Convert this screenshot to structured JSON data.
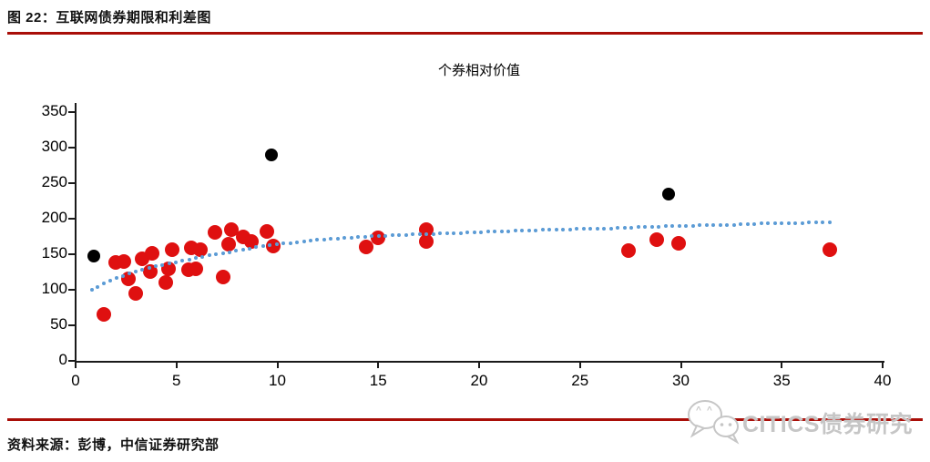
{
  "figure": {
    "title": "图 22：互联网债券期限和利差图",
    "source": "资料来源：彭博，中信证券研究部",
    "watermark_text": "CITICS债券研究",
    "accent_color": "#A90E08"
  },
  "chart_data": {
    "type": "scatter",
    "title": "个券相对价值",
    "xlabel": "",
    "ylabel": "",
    "xlim": [
      0,
      40
    ],
    "ylim": [
      0,
      350
    ],
    "x_ticks": [
      0,
      5,
      10,
      15,
      20,
      25,
      30,
      35,
      40
    ],
    "y_ticks": [
      0,
      50,
      100,
      150,
      200,
      250,
      300,
      350
    ],
    "grid": false,
    "legend": "none",
    "series": [
      {
        "name": "bonds-red",
        "type": "scatter",
        "color": "#DF1010",
        "marker_diameter": 16,
        "points": [
          [
            1.4,
            66
          ],
          [
            2.0,
            138
          ],
          [
            2.4,
            140
          ],
          [
            2.6,
            115
          ],
          [
            3.0,
            95
          ],
          [
            3.3,
            143
          ],
          [
            3.7,
            126
          ],
          [
            3.8,
            151
          ],
          [
            4.45,
            110
          ],
          [
            4.6,
            130
          ],
          [
            4.8,
            157
          ],
          [
            5.6,
            128
          ],
          [
            5.75,
            159
          ],
          [
            5.95,
            129
          ],
          [
            6.2,
            157
          ],
          [
            6.9,
            181
          ],
          [
            7.3,
            118
          ],
          [
            7.6,
            164
          ],
          [
            7.7,
            184
          ],
          [
            8.3,
            174
          ],
          [
            8.7,
            168
          ],
          [
            9.5,
            182
          ],
          [
            9.8,
            162
          ],
          [
            14.4,
            160
          ],
          [
            15.0,
            173
          ],
          [
            17.4,
            184
          ],
          [
            17.4,
            168
          ],
          [
            27.4,
            155
          ],
          [
            28.8,
            171
          ],
          [
            29.9,
            166
          ],
          [
            37.4,
            156
          ]
        ]
      },
      {
        "name": "bonds-black",
        "type": "scatter",
        "color": "#000000",
        "marker_diameter": 14,
        "points": [
          [
            0.9,
            148
          ],
          [
            9.7,
            290
          ],
          [
            29.4,
            235
          ]
        ]
      },
      {
        "name": "trendline",
        "type": "dotted-line",
        "color": "#5B9BD5",
        "dot_diameter": 4,
        "dot_spacing": 7.5,
        "points": [
          [
            0.8,
            100
          ],
          [
            1.5,
            110
          ],
          [
            2,
            116
          ],
          [
            2.5,
            121
          ],
          [
            3,
            126
          ],
          [
            4,
            133
          ],
          [
            5,
            139
          ],
          [
            6,
            145
          ],
          [
            7,
            150
          ],
          [
            8,
            155
          ],
          [
            9,
            160
          ],
          [
            10,
            164
          ],
          [
            12,
            170
          ],
          [
            14,
            174
          ],
          [
            16,
            177
          ],
          [
            18,
            179
          ],
          [
            20,
            181
          ],
          [
            22,
            183
          ],
          [
            24,
            185
          ],
          [
            26,
            186
          ],
          [
            28,
            188
          ],
          [
            30,
            190
          ],
          [
            32,
            191
          ],
          [
            34,
            193
          ],
          [
            36,
            194
          ],
          [
            37.5,
            195
          ]
        ]
      }
    ]
  }
}
